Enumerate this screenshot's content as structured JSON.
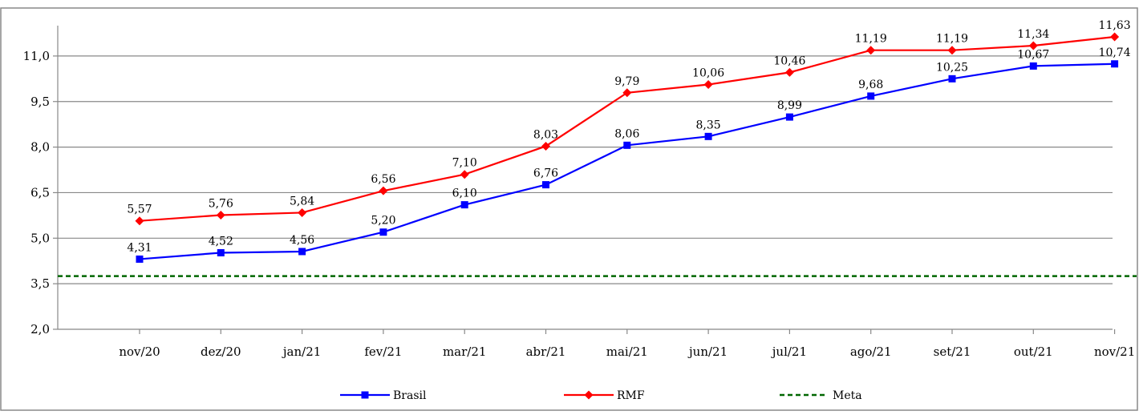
{
  "chart_data": {
    "type": "line",
    "title": "",
    "xlabel": "",
    "ylabel": "",
    "categories": [
      "nov/20",
      "dez/20",
      "jan/21",
      "fev/21",
      "mar/21",
      "abr/21",
      "mai/21",
      "jun/21",
      "jul/21",
      "ago/21",
      "set/21",
      "out/21",
      "nov/21"
    ],
    "ylim": [
      2.0,
      12.0
    ],
    "yticks": [
      2.0,
      3.5,
      5.0,
      6.5,
      8.0,
      9.5,
      11.0
    ],
    "ytick_labels": [
      "2,0",
      "3,5",
      "5,0",
      "6,5",
      "8,0",
      "9,5",
      "11,0"
    ],
    "grid": true,
    "legend_position": "bottom",
    "series": [
      {
        "name": "Brasil",
        "color": "#0000ff",
        "marker": "square",
        "values": [
          4.31,
          4.52,
          4.56,
          5.2,
          6.1,
          6.76,
          8.06,
          8.35,
          8.99,
          9.68,
          10.25,
          10.67,
          10.74
        ],
        "labels": [
          "4,31",
          "4,52",
          "4,56",
          "5,20",
          "6,10",
          "6,76",
          "8,06",
          "8,35",
          "8,99",
          "9,68",
          "10,25",
          "10,67",
          "10,74"
        ]
      },
      {
        "name": "RMF",
        "color": "#ff0000",
        "marker": "diamond",
        "values": [
          5.57,
          5.76,
          5.84,
          6.56,
          7.1,
          8.03,
          9.79,
          10.06,
          10.46,
          11.19,
          11.19,
          11.34,
          11.63
        ],
        "labels": [
          "5,57",
          "5,76",
          "5,84",
          "6,56",
          "7,10",
          "8,03",
          "9,79",
          "10,06",
          "10,46",
          "11,19",
          "11,19",
          "11,34",
          "11,63"
        ]
      },
      {
        "name": "Meta",
        "color": "#006600",
        "style": "dashed",
        "constant": 3.75
      }
    ]
  }
}
